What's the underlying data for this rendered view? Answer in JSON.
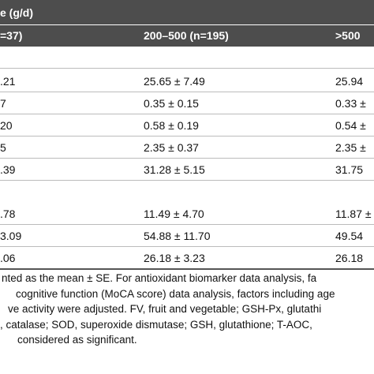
{
  "table": {
    "header": "e (g/d)",
    "subheader": [
      "=37)",
      "200–500 (n=195)",
      ">500"
    ],
    "groups": [
      {
        "rows": [
          [
            ".21",
            "25.65 ± 7.49",
            "25.94"
          ],
          [
            "7",
            "0.35 ± 0.15",
            "0.33 ±"
          ],
          [
            "20",
            "0.58 ± 0.19",
            "0.54 ±"
          ],
          [
            "5",
            "2.35 ± 0.37",
            "2.35 ±"
          ],
          [
            ".39",
            "31.28 ± 5.15",
            "31.75"
          ]
        ]
      },
      {
        "rows": [
          [
            ".78",
            "11.49 ± 4.70",
            "11.87 ±"
          ],
          [
            "3.09",
            "54.88 ± 11.70",
            "49.54"
          ],
          [
            ".06",
            "26.18 ± 3.23",
            "26.18"
          ]
        ]
      }
    ]
  },
  "footnote": [
    "nted as the mean ± SE. For antioxidant biomarker data analysis, fa",
    "cognitive function (MoCA score) data analysis, factors including age",
    "ve activity were adjusted. FV, fruit and vegetable; GSH-Px, glutathi",
    ", catalase; SOD, superoxide dismutase; GSH, glutathione; T-AOC,",
    "considered as significant."
  ]
}
